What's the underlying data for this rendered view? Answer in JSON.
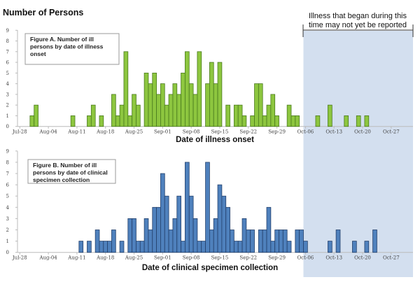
{
  "y_axis_title": "Number of Persons",
  "annotation": {
    "lines": [
      "Illness that began during this",
      "time may not yet be reported"
    ],
    "shaded_from": "Oct-06",
    "shaded_to": "end of axis",
    "shade_color": "#d3dfef"
  },
  "chart_data": [
    {
      "type": "bar",
      "title_lines": [
        "Figure A. Number of ill",
        "persons by date of illness",
        "onset"
      ],
      "xlabel": "Date of illness onset",
      "ylabel": "Number of Persons",
      "ylim": [
        0,
        9
      ],
      "yticks": [
        0,
        1,
        2,
        3,
        4,
        5,
        6,
        7,
        8,
        9
      ],
      "xticks": [
        "Jul-28",
        "Aug-04",
        "Aug-11",
        "Aug-18",
        "Aug-25",
        "Sep-01",
        "Sep-08",
        "Sep-15",
        "Sep-22",
        "Sep-29",
        "Oct-06",
        "Oct-13",
        "Oct-20",
        "Oct-27"
      ],
      "color": "#8dc63f",
      "edge_color": "#4a7a1e",
      "grid": false,
      "x": [
        "Jul-31",
        "Aug-01",
        "Aug-10",
        "Aug-14",
        "Aug-15",
        "Aug-17",
        "Aug-20",
        "Aug-21",
        "Aug-22",
        "Aug-23",
        "Aug-24",
        "Aug-25",
        "Aug-26",
        "Aug-28",
        "Aug-29",
        "Aug-30",
        "Aug-31",
        "Sep-01",
        "Sep-02",
        "Sep-03",
        "Sep-04",
        "Sep-05",
        "Sep-06",
        "Sep-07",
        "Sep-08",
        "Sep-09",
        "Sep-10",
        "Sep-12",
        "Sep-13",
        "Sep-14",
        "Sep-15",
        "Sep-17",
        "Sep-19",
        "Sep-20",
        "Sep-21",
        "Sep-23",
        "Sep-24",
        "Sep-25",
        "Sep-26",
        "Sep-27",
        "Sep-28",
        "Sep-29",
        "Oct-02",
        "Oct-03",
        "Oct-04",
        "Oct-09",
        "Oct-12",
        "Oct-16",
        "Oct-19",
        "Oct-21"
      ],
      "values": [
        1,
        2,
        1,
        1,
        2,
        1,
        3,
        1,
        2,
        7,
        1,
        3,
        2,
        5,
        4,
        5,
        3,
        4,
        2,
        3,
        4,
        3,
        5,
        7,
        4,
        3,
        7,
        4,
        6,
        4,
        6,
        2,
        2,
        2,
        1,
        1,
        4,
        4,
        1,
        2,
        3,
        1,
        2,
        1,
        1,
        1,
        2,
        1,
        1,
        1
      ]
    },
    {
      "type": "bar",
      "title_lines": [
        "Figure B. Number of ill",
        "persons by date of clinical",
        "specimen collection"
      ],
      "xlabel": "Date of clinical specimen collection",
      "ylabel": "Number of Persons",
      "ylim": [
        0,
        9
      ],
      "yticks": [
        0,
        1,
        2,
        3,
        4,
        5,
        6,
        7,
        8,
        9
      ],
      "xticks": [
        "Jul-28",
        "Aug-04",
        "Aug-11",
        "Aug-18",
        "Aug-25",
        "Sep-01",
        "Sep-08",
        "Sep-15",
        "Sep-22",
        "Sep-29",
        "Oct-06",
        "Oct-13",
        "Oct-20",
        "Oct-27"
      ],
      "color": "#4f81bd",
      "edge_color": "#24406b",
      "grid": false,
      "x": [
        "Aug-12",
        "Aug-14",
        "Aug-16",
        "Aug-17",
        "Aug-18",
        "Aug-19",
        "Aug-20",
        "Aug-22",
        "Aug-24",
        "Aug-25",
        "Aug-26",
        "Aug-27",
        "Aug-28",
        "Aug-29",
        "Aug-30",
        "Aug-31",
        "Sep-01",
        "Sep-02",
        "Sep-03",
        "Sep-04",
        "Sep-05",
        "Sep-06",
        "Sep-07",
        "Sep-08",
        "Sep-09",
        "Sep-10",
        "Sep-11",
        "Sep-12",
        "Sep-13",
        "Sep-14",
        "Sep-15",
        "Sep-16",
        "Sep-17",
        "Sep-18",
        "Sep-19",
        "Sep-20",
        "Sep-21",
        "Sep-22",
        "Sep-23",
        "Sep-25",
        "Sep-26",
        "Sep-27",
        "Sep-28",
        "Sep-29",
        "Sep-30",
        "Oct-01",
        "Oct-02",
        "Oct-04",
        "Oct-05",
        "Oct-06",
        "Oct-12",
        "Oct-14",
        "Oct-18",
        "Oct-21",
        "Oct-23"
      ],
      "values": [
        1,
        1,
        2,
        1,
        1,
        1,
        2,
        1,
        3,
        3,
        1,
        1,
        3,
        2,
        4,
        4,
        7,
        5,
        2,
        3,
        5,
        1,
        8,
        5,
        3,
        1,
        1,
        8,
        2,
        3,
        6,
        5,
        4,
        2,
        1,
        1,
        3,
        2,
        2,
        2,
        2,
        4,
        1,
        2,
        2,
        2,
        1,
        2,
        2,
        1,
        1,
        2,
        1,
        1,
        2
      ]
    }
  ]
}
